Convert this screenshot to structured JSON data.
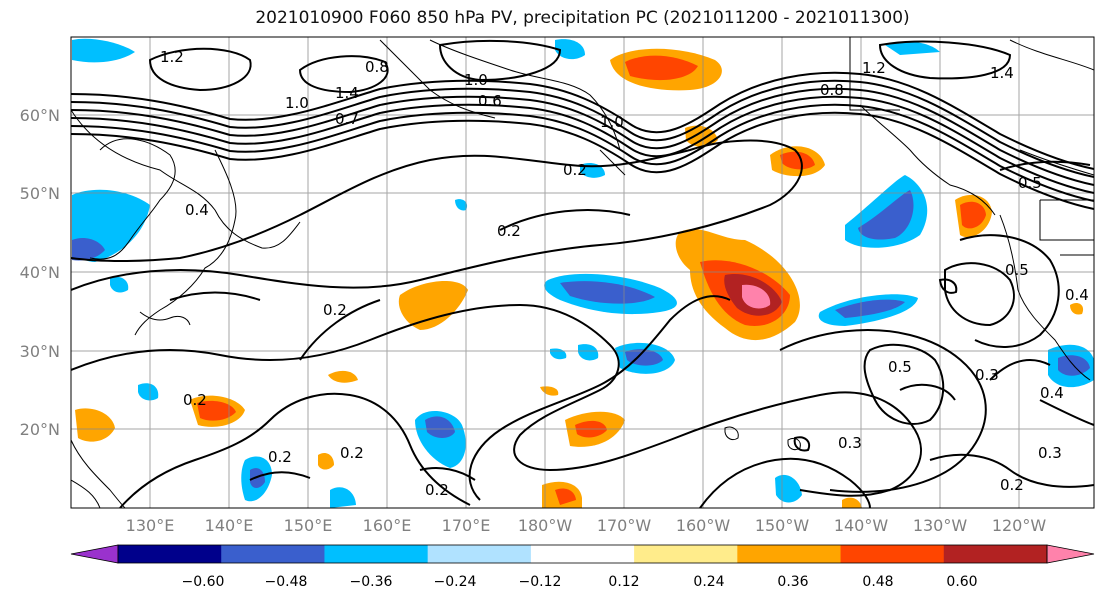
{
  "title": "2021010900 F060 850 hPa PV, precipitation PC (2021011200 - 2021011300)",
  "lat_labels": [
    "60°N",
    "50°N",
    "40°N",
    "30°N",
    "20°N"
  ],
  "lon_labels": [
    "130°E",
    "140°E",
    "150°E",
    "160°E",
    "170°E",
    "180°W",
    "170°W",
    "160°W",
    "150°W",
    "140°W",
    "130°W",
    "120°W"
  ],
  "contour_labels": [
    "1.2",
    "1.0",
    "1.4",
    "0.8",
    "1.0",
    "0.6",
    "0.7",
    "1.0",
    "0.8",
    "1.2",
    "1.4",
    "0.2",
    "0.4",
    "0.5",
    "0.2",
    "0.2",
    "0.2",
    "0.2",
    "0.2",
    "0.2",
    "0.5",
    "0.3",
    "0.3",
    "0.4",
    "0.3",
    "0.2",
    "0.5",
    "0.4"
  ],
  "colorbar": {
    "ticks": [
      "−0.60",
      "−0.48",
      "−0.36",
      "−0.24",
      "−0.12",
      "0.12",
      "0.24",
      "0.36",
      "0.48",
      "0.60"
    ],
    "colors": [
      "#9a32cd",
      "#00008b",
      "#3a5fcd",
      "#00bfff",
      "#b0e2ff",
      "#ffffff",
      "#ffec8b",
      "#ffa500",
      "#ff4500",
      "#b22222",
      "#ff82ab"
    ]
  },
  "colors": {
    "grid": "#888888",
    "contour": "#000000",
    "coast": "#000000"
  }
}
